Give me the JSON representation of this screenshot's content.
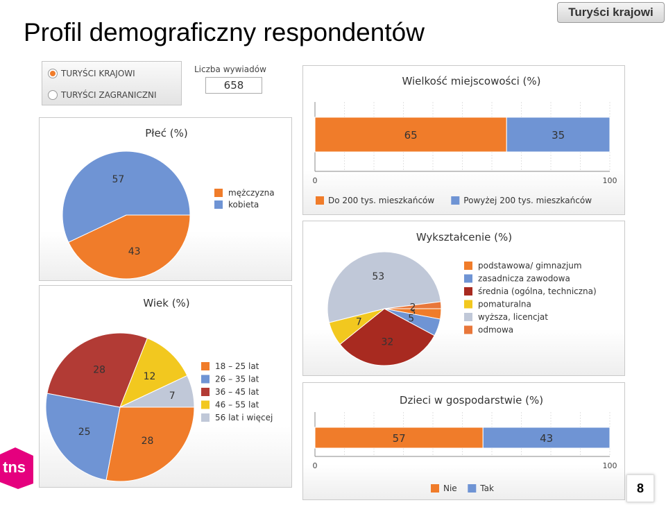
{
  "header": {
    "title": "Profil demograficzny respondentów",
    "badge": "Turyści krajowi"
  },
  "controls": {
    "options": [
      "TURYŚCI KRAJOWI",
      "TURYŚCI ZAGRANICZNI"
    ],
    "selected_index": 0,
    "interviews_label": "Liczba wywiadów",
    "interviews_value": "658"
  },
  "colors": {
    "orange": "#f07c2a",
    "blue": "#6f94d4",
    "darkred": "#b0302a",
    "yellow": "#f2c81f",
    "lightgray": "#c0c8d8",
    "orange2": "#e8773a"
  },
  "chart_data": [
    {
      "id": "plec",
      "type": "pie",
      "title": "Płeć (%)",
      "labels": [
        "mężczyzna",
        "kobieta"
      ],
      "values": [
        43,
        57
      ],
      "colors": [
        "#f07c2a",
        "#6f94d4"
      ],
      "legend": "right"
    },
    {
      "id": "wiek",
      "type": "pie",
      "title": "Wiek (%)",
      "labels": [
        "18 – 25 lat",
        "26 – 35 lat",
        "36 – 45 lat",
        "46 – 55 lat",
        "56 lat i więcej"
      ],
      "values": [
        28,
        25,
        28,
        12,
        7
      ],
      "colors": [
        "#f07c2a",
        "#6f94d4",
        "#b23b35",
        "#f2c81f",
        "#c0c8d8"
      ],
      "legend": "right"
    },
    {
      "id": "miejscowosc",
      "type": "bar",
      "stacked": true,
      "orientation": "horizontal",
      "title": "Wielkość miejscowości (%)",
      "series": [
        {
          "name": "Do 200 tys. mieszkańców",
          "values": [
            65
          ],
          "color": "#f07c2a"
        },
        {
          "name": "Powyżej 200 tys. mieszkańców",
          "values": [
            35
          ],
          "color": "#6f94d4"
        }
      ],
      "xlim": [
        0,
        100
      ],
      "xticks": [
        "0",
        "100"
      ],
      "legend": "bottom"
    },
    {
      "id": "wyksztalcenie",
      "type": "pie",
      "title": "Wykształcenie (%)",
      "labels": [
        "podstawowa/ gimnazjum",
        "zasadnicza zawodowa",
        "średnia (ogólna, techniczna)",
        "pomaturalna",
        "wyższa, licencjat",
        "odmowa"
      ],
      "values": [
        3,
        5,
        32,
        7,
        53,
        2
      ],
      "colors": [
        "#f07c2a",
        "#6f94d4",
        "#a82a20",
        "#f2c81f",
        "#c0c8d8",
        "#e8773a"
      ],
      "legend": "right"
    },
    {
      "id": "dzieci",
      "type": "bar",
      "stacked": true,
      "orientation": "horizontal",
      "title": "Dzieci w gospodarstwie (%)",
      "series": [
        {
          "name": "Nie",
          "values": [
            57
          ],
          "color": "#f07c2a"
        },
        {
          "name": "Tak",
          "values": [
            43
          ],
          "color": "#6f94d4"
        }
      ],
      "xlim": [
        0,
        100
      ],
      "xticks": [
        "0",
        "100"
      ],
      "legend": "bottom"
    }
  ],
  "footer": {
    "logo_text": "tns",
    "page_number": "8"
  }
}
